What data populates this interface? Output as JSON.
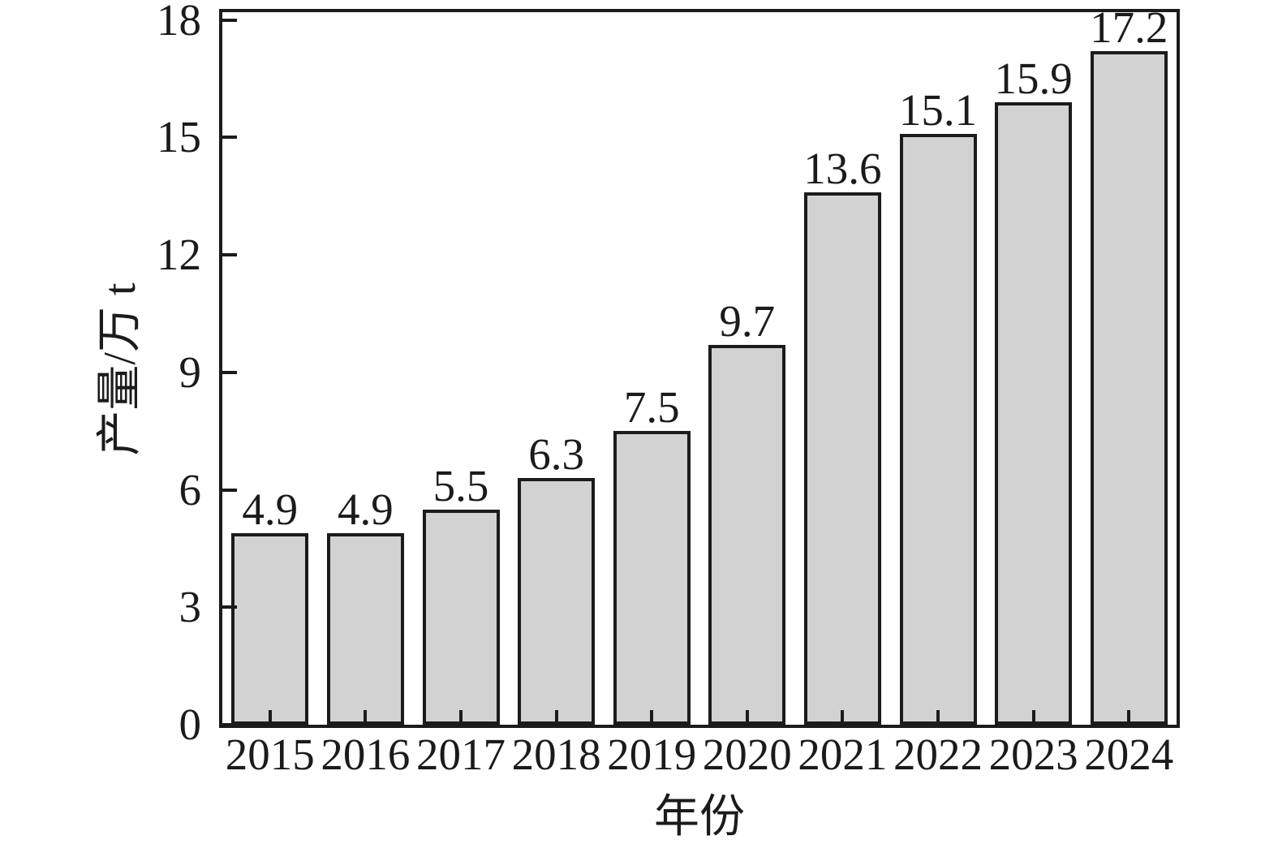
{
  "figure": {
    "background_color": "#ffffff",
    "text_color": "#1b1b1b"
  },
  "chart_data": {
    "type": "bar",
    "title": "",
    "xlabel": "年份",
    "ylabel": "产量/万 t",
    "categories": [
      "2015",
      "2016",
      "2017",
      "2018",
      "2019",
      "2020",
      "2021",
      "2022",
      "2023",
      "2024"
    ],
    "values": [
      4.9,
      4.9,
      5.5,
      6.3,
      7.5,
      9.7,
      13.6,
      15.1,
      15.9,
      17.2
    ],
    "bar_labels": [
      "4.9",
      "4.9",
      "5.5",
      "6.3",
      "7.5",
      "9.7",
      "13.6",
      "15.1",
      "15.9",
      "17.2"
    ],
    "yticks": [
      0,
      3,
      6,
      9,
      12,
      15,
      18
    ],
    "ylim": [
      0,
      18.2
    ],
    "grid": false,
    "legend": "none",
    "frame": "full-box",
    "tick_direction": "in",
    "bar_fill_color": "#d2d2d2",
    "bar_edge_color": "#1b1b1b",
    "axis_color": "#1b1b1b"
  }
}
